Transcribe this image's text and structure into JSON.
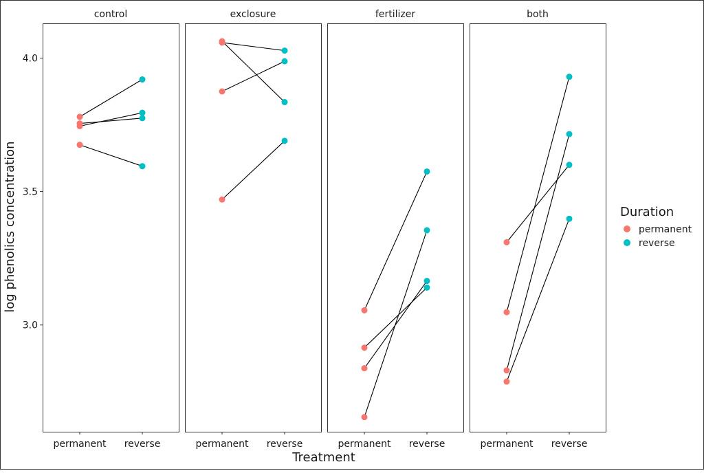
{
  "colors": {
    "permanent": "#F8766D",
    "reverse": "#00BFC4",
    "line": "#000000",
    "panel_border": "#333333",
    "tick": "#333333"
  },
  "chart_data": {
    "type": "scatter",
    "title": "",
    "xlabel": "Treatment",
    "ylabel": "log phenolics concentration",
    "ylim": [
      2.6,
      4.13
    ],
    "yticks": [
      3.0,
      3.5,
      4.0
    ],
    "ytick_labels": [
      "3.0",
      "3.5",
      "4.0"
    ],
    "categories": [
      "permanent",
      "reverse"
    ],
    "grid": false,
    "legend": {
      "title": "Duration",
      "placement": "right",
      "entries": [
        "permanent",
        "reverse"
      ]
    },
    "facets": [
      {
        "label": "control",
        "pairs": [
          [
            3.78,
            3.92
          ],
          [
            3.755,
            3.775
          ],
          [
            3.745,
            3.795
          ],
          [
            3.675,
            3.595
          ]
        ]
      },
      {
        "label": "exclosure",
        "pairs": [
          [
            4.058,
            4.028
          ],
          [
            4.063,
            3.835
          ],
          [
            3.875,
            3.988
          ],
          [
            3.47,
            3.69
          ]
        ]
      },
      {
        "label": "fertilizer",
        "pairs": [
          [
            3.055,
            3.575
          ],
          [
            2.915,
            3.14
          ],
          [
            2.838,
            3.165
          ],
          [
            2.655,
            3.355
          ]
        ]
      },
      {
        "label": "both",
        "pairs": [
          [
            3.31,
            3.6
          ],
          [
            3.048,
            3.93
          ],
          [
            2.83,
            3.715
          ],
          [
            2.788,
            3.398
          ]
        ]
      }
    ]
  }
}
